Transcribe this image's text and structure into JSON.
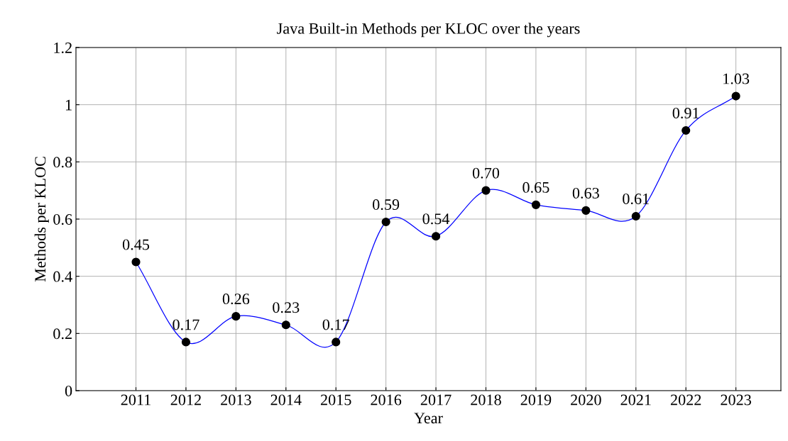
{
  "chart_data": {
    "type": "line",
    "title": "Java Built-in Methods per KLOC over the years",
    "xlabel": "Year",
    "ylabel": "Methods per KLOC",
    "x": [
      2011,
      2012,
      2013,
      2014,
      2015,
      2016,
      2017,
      2018,
      2019,
      2020,
      2021,
      2022,
      2023
    ],
    "series": [
      {
        "color": "#0000ff",
        "colors": [
          "#000000",
          "#000000",
          "#000000",
          "#000000",
          "#000000",
          "#000000",
          "#000000",
          "#000000",
          "#000000",
          "#000000",
          "#000000",
          "#000000",
          "#000000"
        ],
        "values": [
          0.45,
          0.17,
          0.26,
          0.23,
          0.17,
          0.59,
          0.54,
          0.7,
          0.65,
          0.63,
          0.61,
          0.91,
          1.03
        ],
        "value_labels": [
          "0.45",
          "0.17",
          "0.26",
          "0.23",
          "0.17",
          "0.59",
          "0.54",
          "0.70",
          "0.65",
          "0.63",
          "0.61",
          "0.91",
          "1.03"
        ]
      }
    ],
    "xlim": [
      2009.8,
      2023.9
    ],
    "xticks": [
      2011,
      2012,
      2013,
      2014,
      2015,
      2016,
      2017,
      2018,
      2019,
      2020,
      2021,
      2022,
      2023
    ],
    "ylim": [
      0,
      1.2
    ],
    "yticks": [
      0,
      0.2,
      0.4,
      0.6,
      0.8,
      1,
      1.2
    ],
    "grid": true,
    "marker": "circle",
    "line_style": "solid"
  }
}
